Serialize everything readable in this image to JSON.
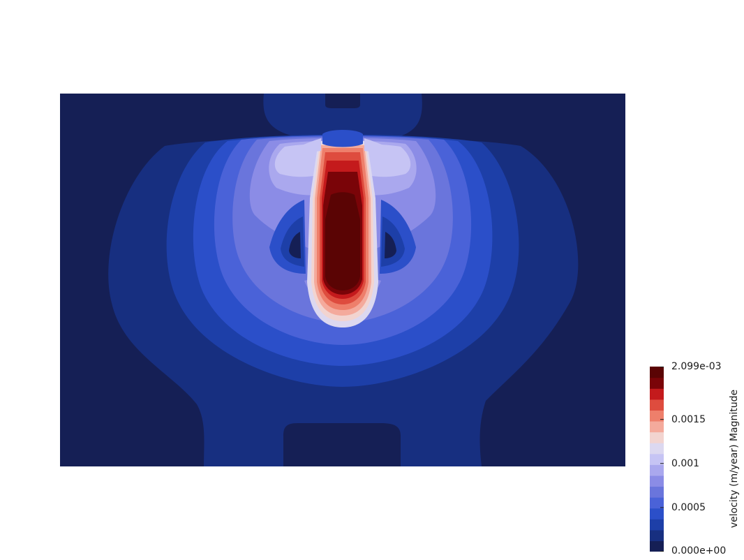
{
  "chart_data": {
    "type": "heatmap",
    "field": "velocity (m/year) Magnitude",
    "colormap": "diverging blue-white-red (Cool to Warm)",
    "range": [
      0.0,
      0.002099
    ],
    "n_color_bands": 16,
    "colors": [
      "#151f55",
      "#172f80",
      "#1d3fa8",
      "#2b4fc9",
      "#4a62d8",
      "#6a75dc",
      "#8b8ce6",
      "#aaa8ee",
      "#c6c4f4",
      "#dcd8f0",
      "#f2d4d0",
      "#f4aa9c",
      "#ee7f6b",
      "#de4c3e",
      "#c41a1c",
      "#7a0408",
      "#5a0404"
    ],
    "colorbar": {
      "max_label": "2.099e-03",
      "min_label": "0.000e+00",
      "ticks": [
        {
          "value": 0.0015,
          "label": "0.0015"
        },
        {
          "value": 0.001,
          "label": "0.001"
        },
        {
          "value": 0.0005,
          "label": "0.0005"
        }
      ],
      "title": "velocity (m/year) Magnitude"
    }
  }
}
